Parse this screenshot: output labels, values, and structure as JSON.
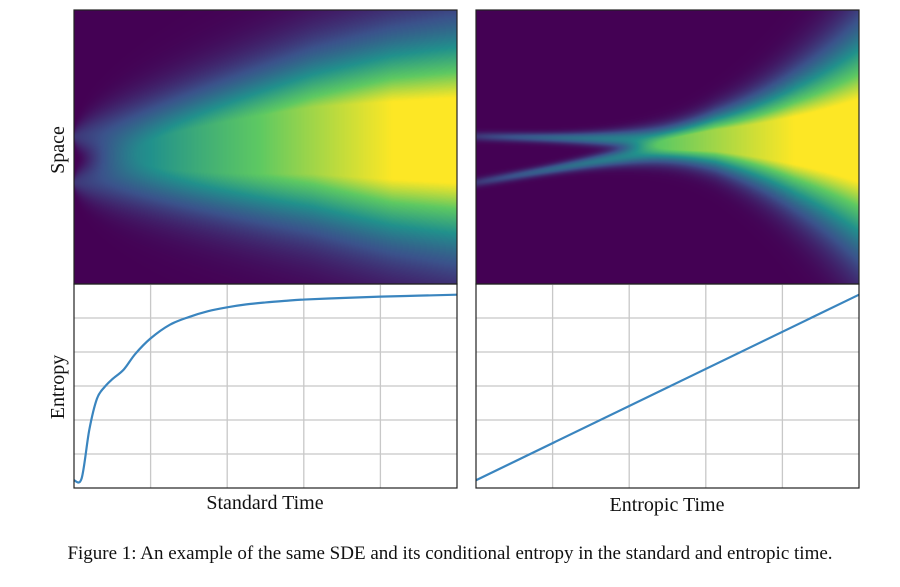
{
  "caption": "Figure 1: An example of the same SDE and its conditional entropy in the standard and entropic time.",
  "colors": {
    "line": "#3a85bf",
    "grid": "#c8c8c8",
    "frame": "#222222",
    "colormap": [
      "#440154",
      "#3b528b",
      "#21918c",
      "#5ec962",
      "#fde725"
    ]
  },
  "chart_data": [
    {
      "type": "heatmap",
      "panel": "top-left",
      "ylabel": "Space",
      "xlabel": "",
      "description_of_values": "density of an SDE started from two initial points",
      "initial_modes": [
        0.15,
        -0.15
      ],
      "colormap": "viridis",
      "time_scale": "standard"
    },
    {
      "type": "heatmap",
      "panel": "top-right",
      "ylabel": "",
      "xlabel": "",
      "initial_modes": [
        0.15,
        -0.15
      ],
      "colormap": "viridis",
      "time_scale": "entropic"
    },
    {
      "type": "line",
      "panel": "bottom-left",
      "ylabel": "Entropy",
      "xlabel": "Standard Time",
      "x": [
        0,
        0.02,
        0.04,
        0.06,
        0.08,
        0.1,
        0.13,
        0.16,
        0.2,
        0.25,
        0.3,
        0.35,
        0.4,
        0.45,
        0.5,
        0.55,
        0.6,
        0.7,
        0.8,
        0.9,
        1.0
      ],
      "y": [
        0.04,
        0.05,
        0.3,
        0.46,
        0.52,
        0.56,
        0.61,
        0.69,
        0.77,
        0.84,
        0.88,
        0.91,
        0.93,
        0.945,
        0.955,
        0.963,
        0.97,
        0.978,
        0.985,
        0.99,
        0.995
      ],
      "grid": true,
      "xlim": [
        0,
        1
      ],
      "ylim": [
        0,
        1.05
      ]
    },
    {
      "type": "line",
      "panel": "bottom-right",
      "ylabel": "",
      "xlabel": "Entropic Time",
      "x": [
        0,
        1
      ],
      "y": [
        0.04,
        0.995
      ],
      "grid": true,
      "xlim": [
        0,
        1
      ],
      "ylim": [
        0,
        1.05
      ]
    }
  ]
}
